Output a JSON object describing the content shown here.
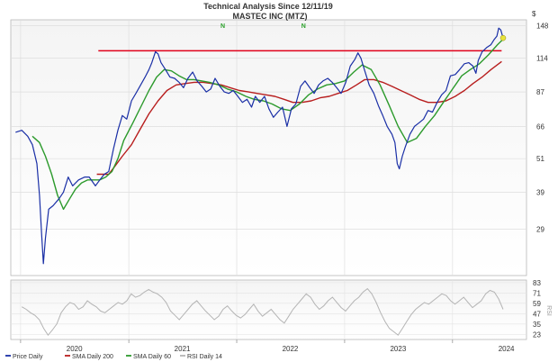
{
  "chart_data": {
    "type": "line",
    "title": "Technical Analysis Since 12/11/19",
    "subtitle": "MASTEC INC (MTZ)",
    "currency_label": "$",
    "scale": "log",
    "ylim": [
      20,
      155
    ],
    "y_ticks": [
      148,
      114,
      87,
      66,
      51,
      39,
      29
    ],
    "x_range": [
      "2019-12-11",
      "2024-06-20"
    ],
    "x_ticks": [
      {
        "label": "2020",
        "date": "2020-07-01"
      },
      {
        "label": "2021",
        "date": "2021-07-01"
      },
      {
        "label": "2022",
        "date": "2022-07-01"
      },
      {
        "label": "2023",
        "date": "2023-07-01"
      },
      {
        "label": "2024",
        "date": "2024-07-01"
      }
    ],
    "markers": [
      "N",
      "N"
    ],
    "marker_dates": [
      "2021-11-15",
      "2022-08-15"
    ],
    "resistance": {
      "value": 121,
      "from": "2020-09-20",
      "to": "2024-06-15",
      "color": "#e0001a"
    },
    "series": [
      {
        "name": "Price Daily",
        "color": "#1a2fa6",
        "points": [
          [
            "2019-12-15",
            63
          ],
          [
            "2020-01-05",
            64
          ],
          [
            "2020-01-25",
            61
          ],
          [
            "2020-02-10",
            57
          ],
          [
            "2020-02-25",
            49
          ],
          [
            "2020-03-05",
            38
          ],
          [
            "2020-03-12",
            28
          ],
          [
            "2020-03-18",
            22
          ],
          [
            "2020-03-25",
            27
          ],
          [
            "2020-04-05",
            34
          ],
          [
            "2020-04-20",
            35
          ],
          [
            "2020-05-10",
            37
          ],
          [
            "2020-05-25",
            39
          ],
          [
            "2020-06-10",
            44
          ],
          [
            "2020-06-25",
            41
          ],
          [
            "2020-07-15",
            43
          ],
          [
            "2020-08-05",
            44
          ],
          [
            "2020-08-20",
            44
          ],
          [
            "2020-09-10",
            41
          ],
          [
            "2020-09-25",
            43
          ],
          [
            "2020-10-10",
            45
          ],
          [
            "2020-10-25",
            46
          ],
          [
            "2020-11-10",
            55
          ],
          [
            "2020-11-25",
            64
          ],
          [
            "2020-12-10",
            72
          ],
          [
            "2020-12-25",
            70
          ],
          [
            "2021-01-10",
            81
          ],
          [
            "2021-01-25",
            86
          ],
          [
            "2021-02-10",
            92
          ],
          [
            "2021-02-25",
            98
          ],
          [
            "2021-03-10",
            104
          ],
          [
            "2021-03-20",
            110
          ],
          [
            "2021-04-01",
            120
          ],
          [
            "2021-04-10",
            118
          ],
          [
            "2021-04-20",
            110
          ],
          [
            "2021-05-05",
            104
          ],
          [
            "2021-05-20",
            98
          ],
          [
            "2021-06-05",
            97
          ],
          [
            "2021-06-20",
            94
          ],
          [
            "2021-07-05",
            90
          ],
          [
            "2021-07-20",
            97
          ],
          [
            "2021-08-05",
            102
          ],
          [
            "2021-08-20",
            95
          ],
          [
            "2021-09-05",
            91
          ],
          [
            "2021-09-20",
            87
          ],
          [
            "2021-10-05",
            89
          ],
          [
            "2021-10-20",
            97
          ],
          [
            "2021-11-05",
            91
          ],
          [
            "2021-11-20",
            87
          ],
          [
            "2021-12-05",
            86
          ],
          [
            "2021-12-20",
            88
          ],
          [
            "2022-01-05",
            84
          ],
          [
            "2022-01-20",
            80
          ],
          [
            "2022-02-05",
            82
          ],
          [
            "2022-02-20",
            77
          ],
          [
            "2022-03-05",
            84
          ],
          [
            "2022-03-20",
            80
          ],
          [
            "2022-04-05",
            84
          ],
          [
            "2022-04-20",
            76
          ],
          [
            "2022-05-05",
            71
          ],
          [
            "2022-05-20",
            74
          ],
          [
            "2022-06-05",
            77
          ],
          [
            "2022-06-20",
            66
          ],
          [
            "2022-07-05",
            76
          ],
          [
            "2022-07-20",
            79
          ],
          [
            "2022-08-05",
            91
          ],
          [
            "2022-08-20",
            95
          ],
          [
            "2022-09-05",
            90
          ],
          [
            "2022-09-20",
            86
          ],
          [
            "2022-10-05",
            92
          ],
          [
            "2022-10-20",
            95
          ],
          [
            "2022-11-05",
            97
          ],
          [
            "2022-11-20",
            94
          ],
          [
            "2022-12-05",
            90
          ],
          [
            "2022-12-20",
            86
          ],
          [
            "2023-01-05",
            94
          ],
          [
            "2023-01-20",
            107
          ],
          [
            "2023-02-05",
            113
          ],
          [
            "2023-02-15",
            119
          ],
          [
            "2023-02-25",
            114
          ],
          [
            "2023-03-10",
            103
          ],
          [
            "2023-03-25",
            92
          ],
          [
            "2023-04-10",
            86
          ],
          [
            "2023-04-25",
            78
          ],
          [
            "2023-05-10",
            72
          ],
          [
            "2023-05-25",
            66
          ],
          [
            "2023-06-10",
            62
          ],
          [
            "2023-06-20",
            58
          ],
          [
            "2023-06-28",
            49
          ],
          [
            "2023-07-05",
            47
          ],
          [
            "2023-07-15",
            52
          ],
          [
            "2023-07-25",
            56
          ],
          [
            "2023-08-10",
            62
          ],
          [
            "2023-08-25",
            66
          ],
          [
            "2023-09-10",
            68
          ],
          [
            "2023-09-25",
            70
          ],
          [
            "2023-10-10",
            75
          ],
          [
            "2023-10-25",
            74
          ],
          [
            "2023-11-10",
            80
          ],
          [
            "2023-11-25",
            85
          ],
          [
            "2023-12-10",
            88
          ],
          [
            "2023-12-25",
            99
          ],
          [
            "2024-01-10",
            100
          ],
          [
            "2024-01-25",
            104
          ],
          [
            "2024-02-10",
            109
          ],
          [
            "2024-02-25",
            110
          ],
          [
            "2024-03-10",
            107
          ],
          [
            "2024-03-20",
            101
          ],
          [
            "2024-03-28",
            112
          ],
          [
            "2024-04-10",
            120
          ],
          [
            "2024-04-25",
            124
          ],
          [
            "2024-05-10",
            127
          ],
          [
            "2024-05-20",
            132
          ],
          [
            "2024-05-30",
            136
          ],
          [
            "2024-06-05",
            145
          ],
          [
            "2024-06-12",
            143
          ],
          [
            "2024-06-20",
            134
          ]
        ]
      },
      {
        "name": "SMA Daily 200",
        "color": "#b81e1e",
        "points": [
          [
            "2020-09-15",
            45
          ],
          [
            "2020-10-05",
            45
          ],
          [
            "2020-10-25",
            45
          ],
          [
            "2020-11-15",
            48
          ],
          [
            "2020-12-10",
            52
          ],
          [
            "2021-01-10",
            57
          ],
          [
            "2021-02-10",
            65
          ],
          [
            "2021-03-10",
            73
          ],
          [
            "2021-04-10",
            81
          ],
          [
            "2021-05-10",
            88
          ],
          [
            "2021-06-10",
            92
          ],
          [
            "2021-07-10",
            93
          ],
          [
            "2021-08-10",
            94
          ],
          [
            "2021-09-10",
            94
          ],
          [
            "2021-10-10",
            93
          ],
          [
            "2021-11-10",
            92
          ],
          [
            "2021-12-10",
            90
          ],
          [
            "2022-01-10",
            88
          ],
          [
            "2022-02-10",
            87
          ],
          [
            "2022-03-10",
            86
          ],
          [
            "2022-04-10",
            85
          ],
          [
            "2022-05-10",
            84
          ],
          [
            "2022-06-10",
            82
          ],
          [
            "2022-07-10",
            80
          ],
          [
            "2022-08-10",
            80
          ],
          [
            "2022-09-10",
            81
          ],
          [
            "2022-10-10",
            83
          ],
          [
            "2022-11-10",
            84
          ],
          [
            "2022-12-10",
            86
          ],
          [
            "2023-01-10",
            88
          ],
          [
            "2023-02-10",
            92
          ],
          [
            "2023-03-10",
            96
          ],
          [
            "2023-04-10",
            96
          ],
          [
            "2023-05-10",
            94
          ],
          [
            "2023-06-10",
            91
          ],
          [
            "2023-07-10",
            88
          ],
          [
            "2023-08-10",
            85
          ],
          [
            "2023-09-10",
            82
          ],
          [
            "2023-10-10",
            80
          ],
          [
            "2023-11-10",
            80
          ],
          [
            "2023-12-10",
            81
          ],
          [
            "2024-01-10",
            84
          ],
          [
            "2024-02-10",
            88
          ],
          [
            "2024-03-10",
            93
          ],
          [
            "2024-04-10",
            98
          ],
          [
            "2024-05-10",
            104
          ],
          [
            "2024-06-15",
            111
          ]
        ]
      },
      {
        "name": "SMA Daily 60",
        "color": "#2c9a2c",
        "points": [
          [
            "2020-02-10",
            61
          ],
          [
            "2020-03-05",
            58
          ],
          [
            "2020-03-25",
            52
          ],
          [
            "2020-04-15",
            45
          ],
          [
            "2020-05-05",
            38
          ],
          [
            "2020-05-25",
            34
          ],
          [
            "2020-06-15",
            37
          ],
          [
            "2020-07-05",
            40
          ],
          [
            "2020-07-25",
            42
          ],
          [
            "2020-08-15",
            43
          ],
          [
            "2020-09-05",
            43
          ],
          [
            "2020-09-25",
            43
          ],
          [
            "2020-10-15",
            44
          ],
          [
            "2020-11-05",
            46
          ],
          [
            "2020-11-25",
            51
          ],
          [
            "2020-12-15",
            59
          ],
          [
            "2021-01-15",
            68
          ],
          [
            "2021-02-10",
            77
          ],
          [
            "2021-03-10",
            88
          ],
          [
            "2021-04-05",
            98
          ],
          [
            "2021-05-01",
            104
          ],
          [
            "2021-05-25",
            103
          ],
          [
            "2021-06-20",
            99
          ],
          [
            "2021-07-15",
            96
          ],
          [
            "2021-08-10",
            96
          ],
          [
            "2021-09-05",
            95
          ],
          [
            "2021-10-01",
            94
          ],
          [
            "2021-11-01",
            92
          ],
          [
            "2021-12-01",
            89
          ],
          [
            "2022-01-01",
            87
          ],
          [
            "2022-02-01",
            84
          ],
          [
            "2022-03-01",
            82
          ],
          [
            "2022-04-01",
            81
          ],
          [
            "2022-05-01",
            79
          ],
          [
            "2022-06-01",
            76
          ],
          [
            "2022-07-01",
            75
          ],
          [
            "2022-08-01",
            79
          ],
          [
            "2022-09-01",
            85
          ],
          [
            "2022-10-01",
            89
          ],
          [
            "2022-11-01",
            92
          ],
          [
            "2022-12-01",
            93
          ],
          [
            "2023-01-01",
            95
          ],
          [
            "2023-02-01",
            102
          ],
          [
            "2023-03-01",
            108
          ],
          [
            "2023-04-01",
            104
          ],
          [
            "2023-05-01",
            92
          ],
          [
            "2023-06-01",
            78
          ],
          [
            "2023-07-01",
            66
          ],
          [
            "2023-08-01",
            58
          ],
          [
            "2023-09-01",
            60
          ],
          [
            "2023-10-01",
            66
          ],
          [
            "2023-11-01",
            72
          ],
          [
            "2023-12-01",
            80
          ],
          [
            "2024-01-01",
            89
          ],
          [
            "2024-02-01",
            99
          ],
          [
            "2024-03-01",
            104
          ],
          [
            "2024-04-01",
            109
          ],
          [
            "2024-05-01",
            117
          ],
          [
            "2024-06-01",
            127
          ],
          [
            "2024-06-18",
            132
          ]
        ]
      }
    ],
    "rsi": {
      "name": "RSI Daily 14",
      "color": "#b4b4b4",
      "y_ticks": [
        83,
        71,
        59,
        47,
        35,
        23
      ],
      "ylim": [
        17,
        86
      ],
      "values": [
        55,
        52,
        48,
        45,
        40,
        30,
        22,
        28,
        35,
        48,
        55,
        60,
        58,
        52,
        55,
        62,
        58,
        55,
        50,
        48,
        52,
        56,
        60,
        58,
        62,
        70,
        66,
        68,
        72,
        75,
        72,
        70,
        66,
        60,
        50,
        45,
        40,
        46,
        52,
        58,
        62,
        56,
        50,
        45,
        40,
        44,
        52,
        56,
        50,
        45,
        42,
        46,
        52,
        58,
        50,
        44,
        48,
        52,
        46,
        40,
        36,
        44,
        52,
        58,
        64,
        70,
        66,
        58,
        52,
        56,
        62,
        66,
        60,
        54,
        50,
        56,
        62,
        66,
        72,
        76,
        70,
        60,
        48,
        38,
        30,
        26,
        22,
        30,
        38,
        46,
        52,
        56,
        60,
        58,
        62,
        66,
        70,
        68,
        62,
        58,
        62,
        66,
        60,
        54,
        58,
        62,
        70,
        74,
        72,
        64,
        52
      ]
    },
    "legend": [
      {
        "label": "Price Daily",
        "color": "#1a2fa6"
      },
      {
        "label": "SMA Daily 200",
        "color": "#b81e1e"
      },
      {
        "label": "SMA Daily 60",
        "color": "#2c9a2c"
      },
      {
        "label": "RSI Daily 14",
        "color": "#b4b4b4"
      }
    ],
    "watermark": "Zacks"
  }
}
